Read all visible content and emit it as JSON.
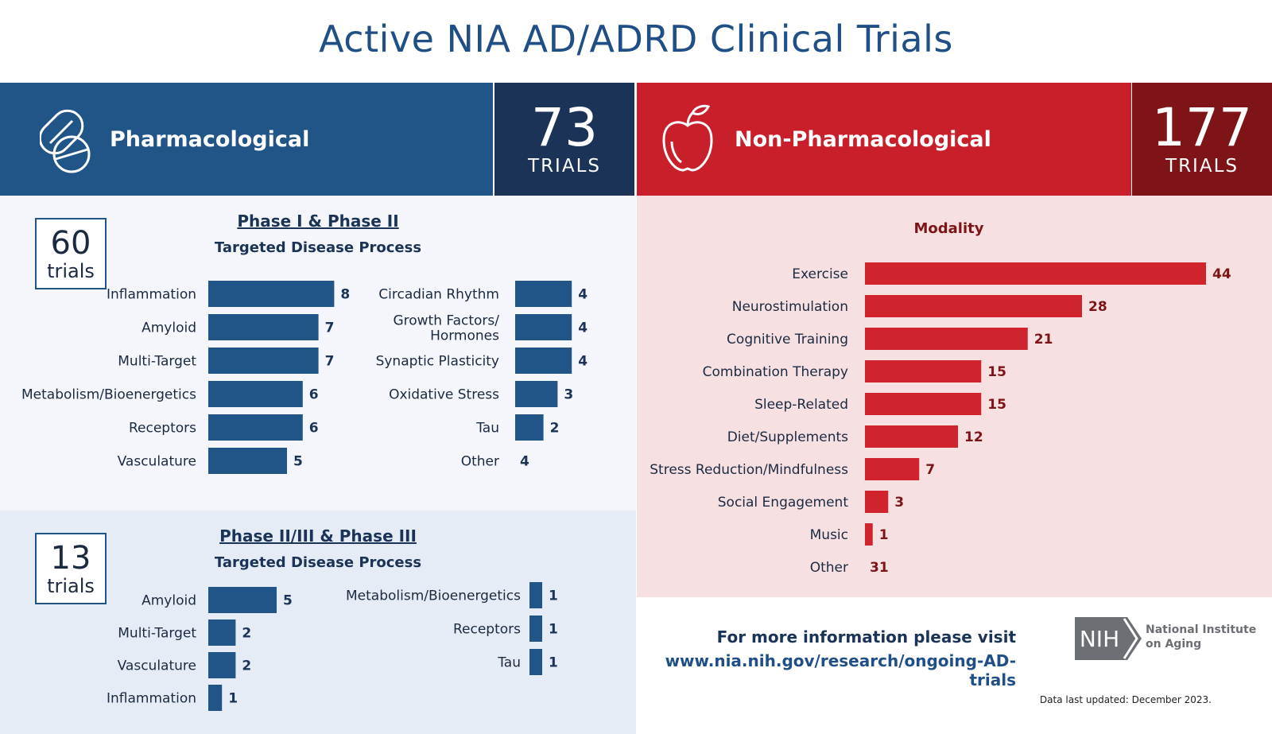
{
  "title": "Active NIA AD/ADRD Clinical Trials",
  "colors": {
    "pharma_blue": "#215587",
    "pharma_navy": "#1b3357",
    "nonpharma_red": "#c81f2b",
    "nonpharma_dark": "#7e1418",
    "bar_blue": "#215587",
    "bar_red": "#d0232d",
    "label_red": "#7e1418"
  },
  "pharmacological": {
    "label": "Pharmacological",
    "icon": "pill-icon",
    "count": "73",
    "count_word": "TRIALS"
  },
  "non_pharmacological": {
    "label": "Non-Pharmacological",
    "icon": "apple-icon",
    "count": "177",
    "count_word": "TRIALS"
  },
  "phase1": {
    "trials_count": "60",
    "trials_word": "trials",
    "title": "Phase I & Phase II",
    "subtitle": "Targeted Disease Process"
  },
  "phase3": {
    "trials_count": "13",
    "trials_word": "trials",
    "title": "Phase II/III & Phase III",
    "subtitle": "Targeted Disease Process"
  },
  "modality": {
    "title": "Modality"
  },
  "info": {
    "line1": "For more information please visit",
    "line2": "www.nia.nih.gov/research/ongoing-AD-trials",
    "updated": "Data last updated: December 2023.",
    "logo_text": "NIH",
    "agency_line1": "National Institute",
    "agency_line2": "on Aging"
  },
  "chart_data": [
    {
      "type": "bar",
      "orientation": "horizontal",
      "title": "Phase I & Phase II",
      "subtitle": "Targeted Disease Process",
      "categories": [
        "Inflammation",
        "Amyloid",
        "Multi-Target",
        "Metabolism/Bioenergetics",
        "Receptors",
        "Vasculature"
      ],
      "values": [
        8,
        7,
        7,
        6,
        6,
        5
      ]
    },
    {
      "type": "bar",
      "orientation": "horizontal",
      "title": "Phase I & Phase II",
      "subtitle": "Targeted Disease Process",
      "categories": [
        "Circadian Rhythm",
        "Growth Factors/ Hormones",
        "Synaptic Plasticity",
        "Oxidative Stress",
        "Tau",
        "Other"
      ],
      "values": [
        4,
        4,
        4,
        3,
        2,
        4
      ],
      "bar_drawn": [
        true,
        true,
        true,
        true,
        true,
        false
      ]
    },
    {
      "type": "bar",
      "orientation": "horizontal",
      "title": "Phase II/III & Phase III",
      "subtitle": "Targeted Disease Process",
      "categories": [
        "Amyloid",
        "Multi-Target",
        "Vasculature",
        "Inflammation"
      ],
      "values": [
        5,
        2,
        2,
        1
      ]
    },
    {
      "type": "bar",
      "orientation": "horizontal",
      "title": "Phase II/III & Phase III",
      "subtitle": "Targeted Disease Process",
      "categories": [
        "Metabolism/Bioenergetics",
        "Receptors",
        "Tau"
      ],
      "values": [
        1,
        1,
        1
      ]
    },
    {
      "type": "bar",
      "orientation": "horizontal",
      "title": "Modality",
      "categories": [
        "Exercise",
        "Neurostimulation",
        "Cognitive Training",
        "Combination Therapy",
        "Sleep-Related",
        "Diet/Supplements",
        "Stress Reduction/Mindfulness",
        "Social Engagement",
        "Music",
        "Other"
      ],
      "values": [
        44,
        28,
        21,
        15,
        15,
        12,
        7,
        3,
        1,
        31
      ],
      "bar_drawn": [
        true,
        true,
        true,
        true,
        true,
        true,
        true,
        true,
        true,
        false
      ]
    }
  ]
}
